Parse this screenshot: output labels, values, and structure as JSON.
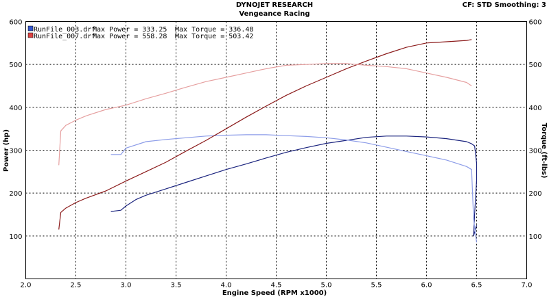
{
  "header": {
    "title": "DYNOJET RESEARCH",
    "subtitle": "Vengeance Racing",
    "settings": "CF: STD  Smoothing: 3"
  },
  "legend": {
    "items": [
      {
        "file": "RunFile_003.drf",
        "max_power": "Max Power = 333.25",
        "max_torque": "Max Torque = 336.48",
        "color": "#3355cc"
      },
      {
        "file": "RunFile_007.drf",
        "max_power": "Max Power = 558.28",
        "max_torque": "Max Torque = 503.42",
        "color": "#dd4444"
      }
    ]
  },
  "chart_data": {
    "type": "line",
    "xlabel": "Engine Speed (RPM x1000)",
    "ylabel": "Power (hp)",
    "y2label": "Torque (ft-lbs)",
    "xlim": [
      2.0,
      7.0
    ],
    "ylim": [
      0,
      600
    ],
    "y2lim": [
      0,
      600
    ],
    "x_ticks": [
      "2.0",
      "2.5",
      "3.0",
      "3.5",
      "4.0",
      "4.5",
      "5.0",
      "5.5",
      "6.0",
      "6.5",
      "7.0"
    ],
    "y_ticks": [
      "100",
      "200",
      "300",
      "400",
      "500",
      "600"
    ],
    "y2_ticks": [
      "100",
      "200",
      "300",
      "400",
      "500",
      "600"
    ],
    "grid": true,
    "series": [
      {
        "name": "RunFile_003.drf Power",
        "axis": "left",
        "color": "#1a237e",
        "x": [
          2.85,
          2.95,
          3.0,
          3.1,
          3.2,
          3.4,
          3.6,
          3.8,
          4.0,
          4.2,
          4.4,
          4.6,
          4.8,
          5.0,
          5.2,
          5.4,
          5.6,
          5.8,
          6.0,
          6.2,
          6.4,
          6.45,
          6.48,
          6.5,
          6.5,
          6.48,
          6.47,
          6.5
        ],
        "y": [
          157,
          160,
          170,
          185,
          195,
          210,
          225,
          240,
          255,
          268,
          282,
          295,
          306,
          316,
          323,
          330,
          333,
          333,
          331,
          327,
          320,
          315,
          310,
          270,
          230,
          150,
          100,
          125
        ]
      },
      {
        "name": "RunFile_003.drf Torque",
        "axis": "right",
        "color": "#8c9ce8",
        "x": [
          2.85,
          2.95,
          3.0,
          3.2,
          3.4,
          3.6,
          3.8,
          4.0,
          4.2,
          4.4,
          4.6,
          4.8,
          5.0,
          5.2,
          5.4,
          5.6,
          5.8,
          6.0,
          6.2,
          6.4,
          6.45,
          6.47,
          6.5
        ],
        "y": [
          290,
          290,
          305,
          320,
          325,
          329,
          333,
          335,
          336,
          336,
          334,
          332,
          329,
          324,
          317,
          307,
          297,
          287,
          277,
          262,
          255,
          140,
          85
        ]
      },
      {
        "name": "RunFile_007.drf Power",
        "axis": "left",
        "color": "#8b1a1a",
        "x": [
          2.33,
          2.35,
          2.4,
          2.5,
          2.6,
          2.8,
          3.0,
          3.2,
          3.4,
          3.6,
          3.8,
          4.0,
          4.2,
          4.4,
          4.6,
          4.8,
          5.0,
          5.2,
          5.4,
          5.6,
          5.8,
          6.0,
          6.2,
          6.4,
          6.45
        ],
        "y": [
          115,
          155,
          165,
          178,
          188,
          205,
          228,
          250,
          272,
          298,
          323,
          350,
          377,
          403,
          428,
          450,
          470,
          490,
          508,
          525,
          540,
          550,
          553,
          556,
          558
        ]
      },
      {
        "name": "RunFile_007.drf Torque",
        "axis": "right",
        "color": "#e6a0a0",
        "x": [
          2.33,
          2.35,
          2.4,
          2.5,
          2.6,
          2.8,
          3.0,
          3.2,
          3.4,
          3.6,
          3.8,
          4.0,
          4.2,
          4.4,
          4.6,
          4.8,
          5.0,
          5.2,
          5.4,
          5.6,
          5.8,
          6.0,
          6.2,
          6.4,
          6.45
        ],
        "y": [
          265,
          345,
          358,
          370,
          380,
          395,
          405,
          420,
          433,
          447,
          460,
          470,
          480,
          490,
          498,
          500,
          502,
          502,
          498,
          495,
          490,
          480,
          470,
          458,
          450
        ]
      }
    ]
  }
}
